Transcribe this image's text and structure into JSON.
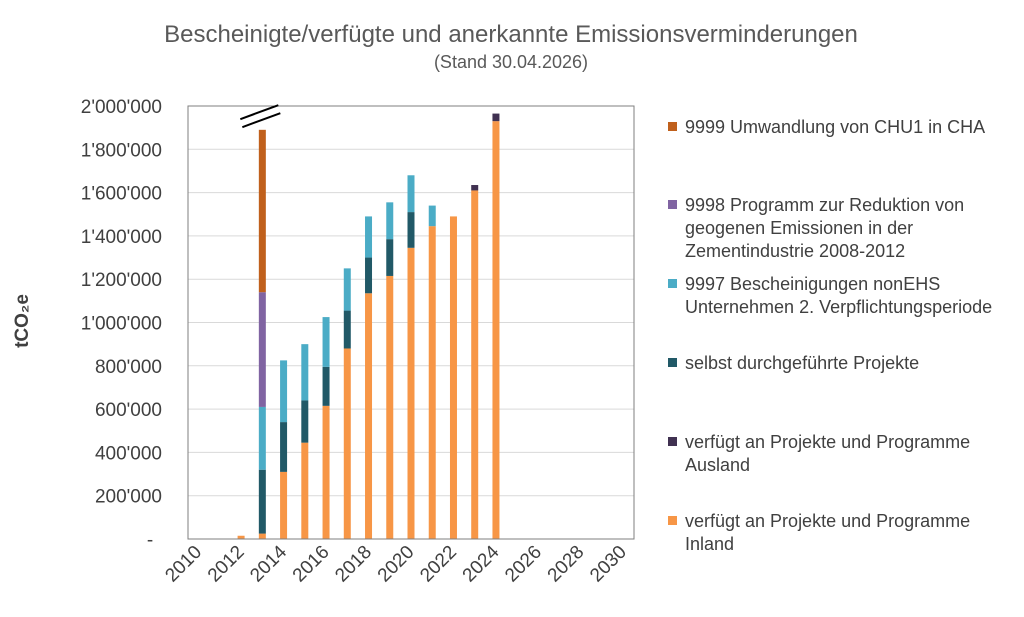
{
  "chart_data": {
    "type": "bar",
    "stacked": true,
    "title": "Bescheinigte/verfügte und anerkannte Emissionsverminderungen",
    "subtitle": "(Stand 30.04.2026)",
    "ylabel": "tCO₂e",
    "xlabel": "",
    "ylim": [
      0,
      2000000
    ],
    "y_ticks": [
      "-",
      "200'000",
      "400'000",
      "600'000",
      "800'000",
      "1'000'000",
      "1'200'000",
      "1'400'000",
      "1'600'000",
      "1'800'000",
      "2'000'000"
    ],
    "x_ticks": [
      "2010",
      "2012",
      "2014",
      "2016",
      "2018",
      "2020",
      "2022",
      "2024",
      "2026",
      "2028",
      "2030"
    ],
    "x_range": [
      2010,
      2031
    ],
    "axis_break": {
      "year": 2013
    },
    "grid": true,
    "legend_position": "right",
    "categories": [
      2010,
      2011,
      2012,
      2013,
      2014,
      2015,
      2016,
      2017,
      2018,
      2019,
      2020,
      2021,
      2022,
      2023,
      2024,
      2025,
      2026,
      2027,
      2028,
      2029,
      2030
    ],
    "series": [
      {
        "name": "verfügt an Projekte und Programme Inland",
        "color": "#f79646",
        "values": [
          0,
          0,
          15000,
          25000,
          310000,
          445000,
          615000,
          880000,
          1135000,
          1215000,
          1345000,
          1445000,
          1490000,
          1610000,
          1930000,
          0,
          0,
          0,
          0,
          0,
          0
        ]
      },
      {
        "name": "verfügt an Projekte und Programme Ausland",
        "color": "#403151",
        "values": [
          0,
          0,
          0,
          0,
          0,
          0,
          0,
          0,
          0,
          0,
          0,
          0,
          0,
          25000,
          35000,
          0,
          0,
          0,
          0,
          0,
          0
        ]
      },
      {
        "name": "selbst durchgeführte Projekte",
        "color": "#215967",
        "values": [
          0,
          0,
          0,
          295000,
          230000,
          195000,
          180000,
          175000,
          165000,
          170000,
          165000,
          0,
          0,
          0,
          0,
          0,
          0,
          0,
          0,
          0,
          0
        ]
      },
      {
        "name": "9997 Bescheinigungen nonEHS Unternehmen 2. Verpflichtungsperiode",
        "color": "#4bacc6",
        "values": [
          0,
          0,
          0,
          290000,
          285000,
          260000,
          230000,
          195000,
          190000,
          170000,
          170000,
          95000,
          0,
          0,
          0,
          0,
          0,
          0,
          0,
          0,
          0
        ]
      },
      {
        "name": "9998 Programm zur Reduktion von geogenen Emissionen in der Zementindustrie 2008-2012",
        "color": "#8064a2",
        "values": [
          0,
          0,
          0,
          530000,
          0,
          0,
          0,
          0,
          0,
          0,
          0,
          0,
          0,
          0,
          0,
          0,
          0,
          0,
          0,
          0,
          0
        ]
      },
      {
        "name": "9999 Umwandlung von CHU1 in CHA",
        "color": "#c0601c",
        "values": [
          0,
          0,
          0,
          750000,
          0,
          0,
          0,
          0,
          0,
          0,
          0,
          0,
          0,
          0,
          0,
          0,
          0,
          0,
          0,
          0,
          0
        ]
      }
    ],
    "legend": [
      {
        "label": "9999 Umwandlung von CHU1 in CHA",
        "color": "#c0601c"
      },
      {
        "label": "9998 Programm zur Reduktion von geogenen Emissionen in der Zementindustrie 2008-2012",
        "color": "#8064a2"
      },
      {
        "label": "9997 Bescheinigungen nonEHS Unternehmen 2. Verpflichtungsperiode",
        "color": "#4bacc6"
      },
      {
        "label": "selbst durchgeführte Projekte",
        "color": "#215967"
      },
      {
        "label": "verfügt an Projekte und Programme Ausland",
        "color": "#403151"
      },
      {
        "label": "verfügt an Projekte und Programme Inland",
        "color": "#f79646"
      }
    ]
  }
}
